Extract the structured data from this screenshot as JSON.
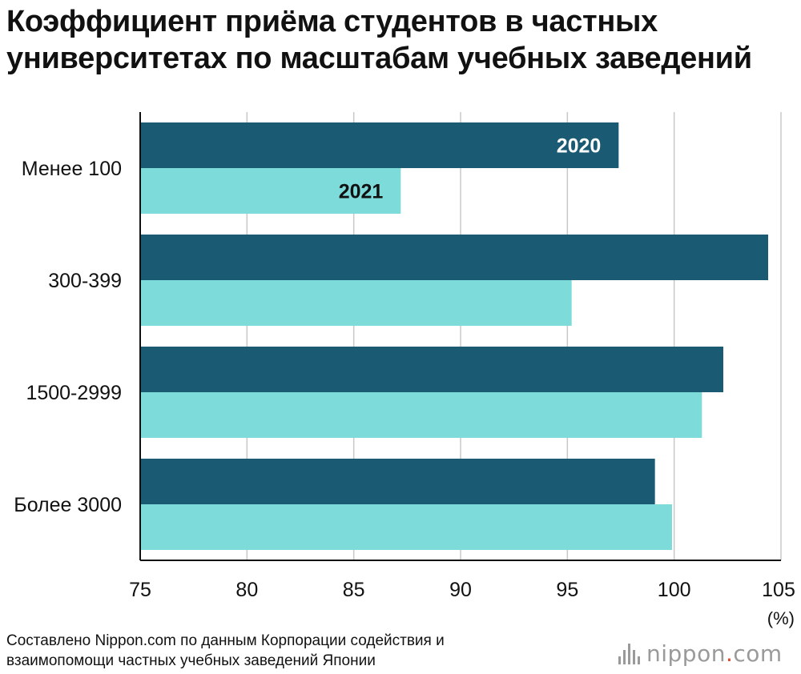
{
  "title": {
    "line1": "Коэффициент приёма студентов в частных",
    "line2": "университетах по масштабам учебных заведений"
  },
  "chart_data": {
    "type": "bar",
    "orientation": "horizontal",
    "categories": [
      "Менее 100",
      "300-399",
      "1500-2999",
      "Более 3000"
    ],
    "series": [
      {
        "name": "2020",
        "color": "#1a5a73",
        "values": [
          97.4,
          104.4,
          102.3,
          99.1
        ]
      },
      {
        "name": "2021",
        "color": "#7ddbd9",
        "values": [
          87.2,
          95.2,
          101.3,
          99.9
        ]
      }
    ],
    "xlim": [
      75,
      105
    ],
    "xticks": [
      75,
      80,
      85,
      90,
      95,
      100,
      105
    ],
    "xlabel": "",
    "unit_label": "(%)",
    "grid": true
  },
  "source": {
    "line1": "Составлено Nippon.com по данным Корпорации содействия и",
    "line2": "взаимопомощи частных учебных заведений Японии"
  },
  "logo": {
    "name": "nippon",
    "dot": ".",
    "suffix": "com"
  }
}
